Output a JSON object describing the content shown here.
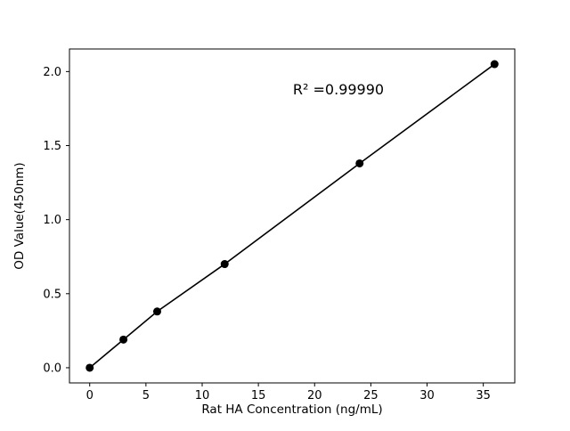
{
  "chart_data": {
    "type": "line",
    "markers": true,
    "x": [
      0,
      3,
      6,
      12,
      24,
      36
    ],
    "y": [
      0.0,
      0.19,
      0.38,
      0.7,
      1.38,
      2.05
    ],
    "title": "",
    "xlabel": "Rat HA Concentration (ng/mL)",
    "ylabel": "OD Value(450nm)",
    "annotation": "R² =0.99990",
    "xlim": [
      -1.8,
      37.8
    ],
    "ylim": [
      -0.1025,
      2.1525
    ],
    "x_ticks": [
      0,
      5,
      10,
      15,
      20,
      25,
      30,
      35
    ],
    "y_ticks": [
      0.0,
      0.5,
      1.0,
      1.5,
      2.0
    ],
    "grid": false,
    "legend": "none",
    "line_color": "#000000",
    "marker_color": "#000000",
    "background_color": "#ffffff"
  }
}
